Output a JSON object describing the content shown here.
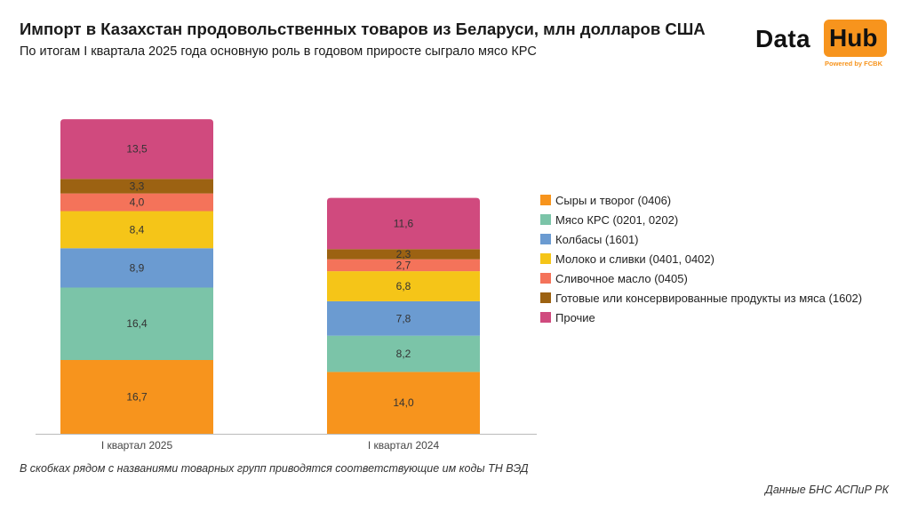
{
  "header": {
    "title": "Импорт в Казахстан продовольственных товаров из Беларуси, млн долларов США",
    "subtitle": "По итогам I квартала 2025 года основную роль в годовом приросте сыграло мясо КРС"
  },
  "logo": {
    "word_left": "Data",
    "word_right": "Hub",
    "powered": "Powered by FCBK",
    "accent_color": "#f7941d"
  },
  "chart_data": {
    "type": "bar",
    "stacked": true,
    "categories": [
      "I квартал 2025",
      "I квартал 2024"
    ],
    "series": [
      {
        "name": "Сыры и творог (0406)",
        "color": "#f7941d",
        "values": [
          16.7,
          14.0
        ],
        "labels": [
          "16,7",
          "14,0"
        ]
      },
      {
        "name": "Мясо КРС (0201, 0202)",
        "color": "#7bc4a8",
        "values": [
          16.4,
          8.2
        ],
        "labels": [
          "16,4",
          "8,2"
        ]
      },
      {
        "name": "Колбасы (1601)",
        "color": "#6b9bd1",
        "values": [
          8.9,
          7.8
        ],
        "labels": [
          "8,9",
          "7,8"
        ]
      },
      {
        "name": "Молоко и сливки (0401, 0402)",
        "color": "#f5c518",
        "values": [
          8.4,
          6.8
        ],
        "labels": [
          "8,4",
          "6,8"
        ]
      },
      {
        "name": "Сливочное масло (0405)",
        "color": "#f4735a",
        "values": [
          4.0,
          2.7
        ],
        "labels": [
          "4,0",
          "2,7"
        ]
      },
      {
        "name": "Готовые или консервированные продукты из мяса (1602)",
        "color": "#9c6212",
        "values": [
          3.3,
          2.3
        ],
        "labels": [
          "3,3",
          "2,3"
        ]
      },
      {
        "name": "Прочие",
        "color": "#d04a7e",
        "values": [
          13.5,
          11.6
        ],
        "labels": [
          "13,5",
          "11,6"
        ]
      }
    ],
    "legend_position": "right",
    "grid": false
  },
  "footnote": "В скобках рядом с названиями товарных групп приводятся соответствующие им коды ТН ВЭД",
  "source": "Данные БНС АСПиР РК"
}
